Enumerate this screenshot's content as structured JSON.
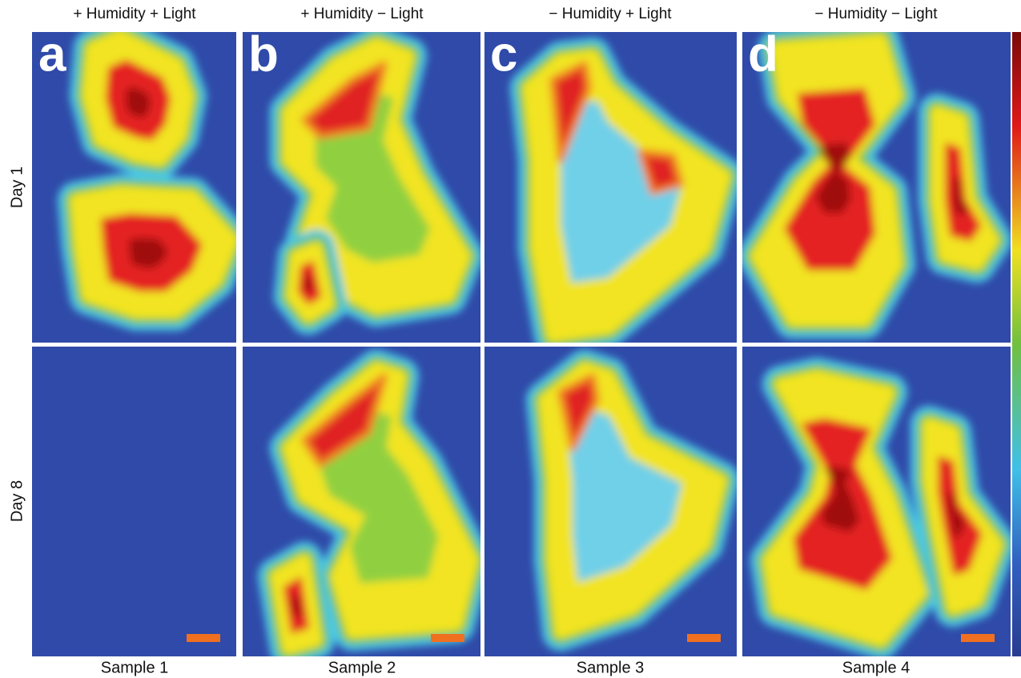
{
  "column_headers": [
    "+ Humidity + Light",
    "+ Humidity − Light",
    "− Humidity + Light",
    "− Humidity −  Light"
  ],
  "row_labels": [
    "Day 1",
    "Day 8"
  ],
  "panel_letters": [
    "a",
    "b",
    "c",
    "d"
  ],
  "sample_labels": [
    "Sample 1",
    "Sample 2",
    "Sample 3",
    "Sample 4"
  ]
}
